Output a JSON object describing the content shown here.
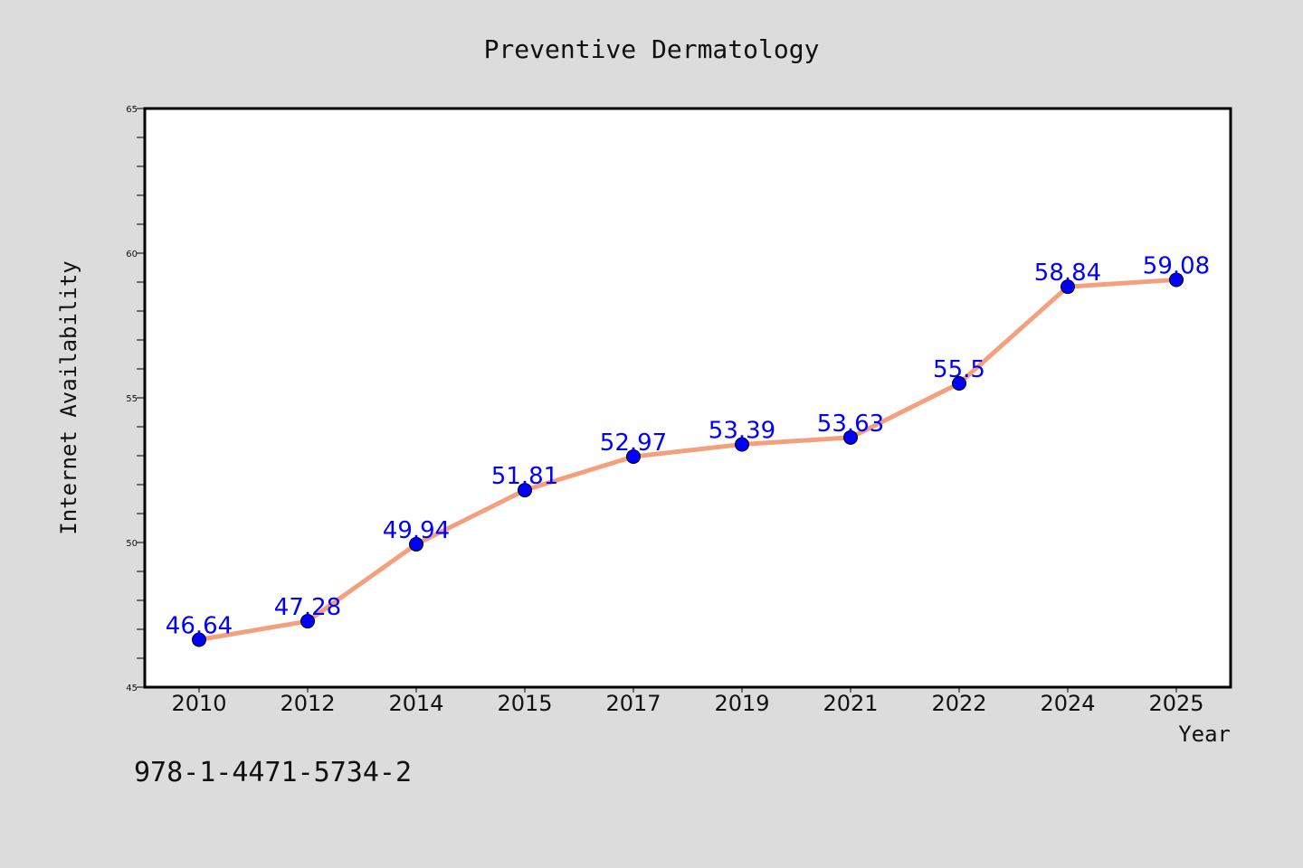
{
  "colors": {
    "background": "#dcdcdc",
    "plot_background": "#ffffff",
    "line": "#f4a07e",
    "marker": "#0000ff",
    "data_label": "#0000ff",
    "text": "#111111"
  },
  "footer": {
    "isbn": "978-1-4471-5734-2"
  },
  "chart_data": {
    "type": "line",
    "title": "Preventive Dermatology",
    "xlabel": "Year",
    "ylabel": "Internet Availability",
    "categories": [
      "2010",
      "2012",
      "2014",
      "2015",
      "2017",
      "2019",
      "2021",
      "2022",
      "2024",
      "2025"
    ],
    "series": [
      {
        "values": [
          46.64,
          47.28,
          49.94,
          51.81,
          52.97,
          53.39,
          53.63,
          55.5,
          58.84,
          59.08
        ],
        "labels": [
          "46.64",
          "47.28",
          "49.94",
          "51.81",
          "52.97",
          "53.39",
          "53.63",
          "55.5",
          "58.84",
          "59.08"
        ]
      }
    ],
    "ylim": [
      45,
      65
    ],
    "yticks": [
      45,
      50,
      55,
      60,
      65
    ],
    "ytick_labels": [
      "45",
      "50",
      "55",
      "60",
      "65"
    ],
    "y_minor_step": 1,
    "grid": false,
    "legend": "none"
  }
}
